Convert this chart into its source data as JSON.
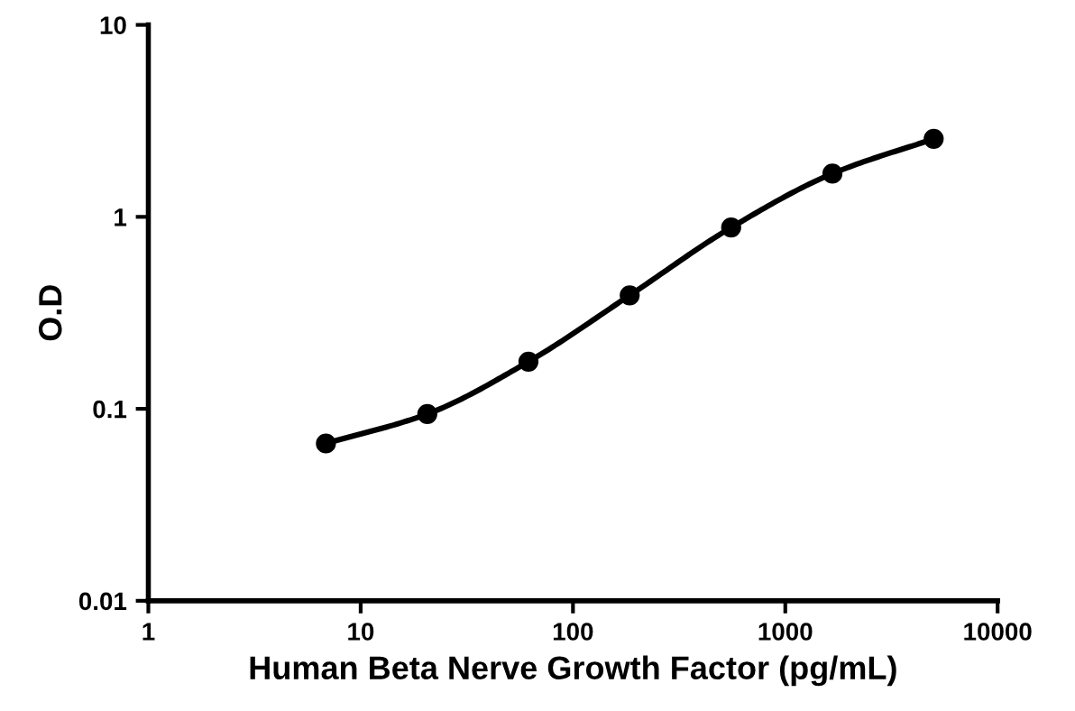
{
  "chart_data": {
    "type": "line",
    "xlabel": "Human Beta Nerve Growth Factor (pg/mL)",
    "ylabel": "O.D",
    "log": "xy",
    "x": [
      6.86,
      20.6,
      61.7,
      185,
      556,
      1667,
      5000
    ],
    "series": [
      {
        "color": "#000000",
        "values": [
          0.066,
          0.094,
          0.176,
          0.39,
          0.88,
          1.68,
          2.55
        ]
      }
    ],
    "xlim": [
      1,
      10000
    ],
    "xticks": [
      1,
      10,
      100,
      1000,
      10000
    ],
    "ylim": [
      0.01,
      10
    ],
    "yticks": [
      0.01,
      0.1,
      1,
      10
    ],
    "marker": "circle",
    "line_style": "solid",
    "grid": false
  }
}
